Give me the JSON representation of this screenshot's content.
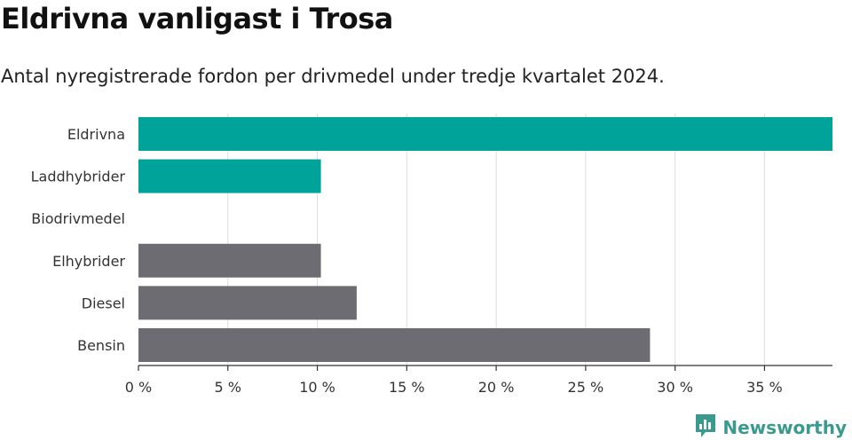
{
  "header": {
    "title": "Eldrivna vanligast i Trosa",
    "subtitle": "Antal nyregistrerade fordon per drivmedel under tredje kvartalet 2024."
  },
  "brand": {
    "name": "Newsworthy",
    "icon": "newsworthy-chart-icon",
    "color": "#3a9a8e"
  },
  "chart_data": {
    "type": "bar",
    "orientation": "horizontal",
    "title": "Eldrivna vanligast i Trosa",
    "subtitle": "Antal nyregistrerade fordon per drivmedel under tredje kvartalet 2024.",
    "categories": [
      "Eldrivna",
      "Laddhybrider",
      "Biodrivmedel",
      "Elhybrider",
      "Diesel",
      "Bensin"
    ],
    "values": [
      38.8,
      10.2,
      0,
      10.2,
      12.2,
      28.6
    ],
    "colors": [
      "#00a39a",
      "#00a39a",
      "#00a39a",
      "#6d6c72",
      "#6d6c72",
      "#6d6c72"
    ],
    "x_unit": "%",
    "xlim": [
      0,
      38.8
    ],
    "ticks": [
      0,
      5,
      10,
      15,
      20,
      25,
      30,
      35
    ],
    "tick_labels": [
      "0 %",
      "5 %",
      "10 %",
      "15 %",
      "20 %",
      "25 %",
      "30 %",
      "35 %"
    ],
    "grid": true
  }
}
